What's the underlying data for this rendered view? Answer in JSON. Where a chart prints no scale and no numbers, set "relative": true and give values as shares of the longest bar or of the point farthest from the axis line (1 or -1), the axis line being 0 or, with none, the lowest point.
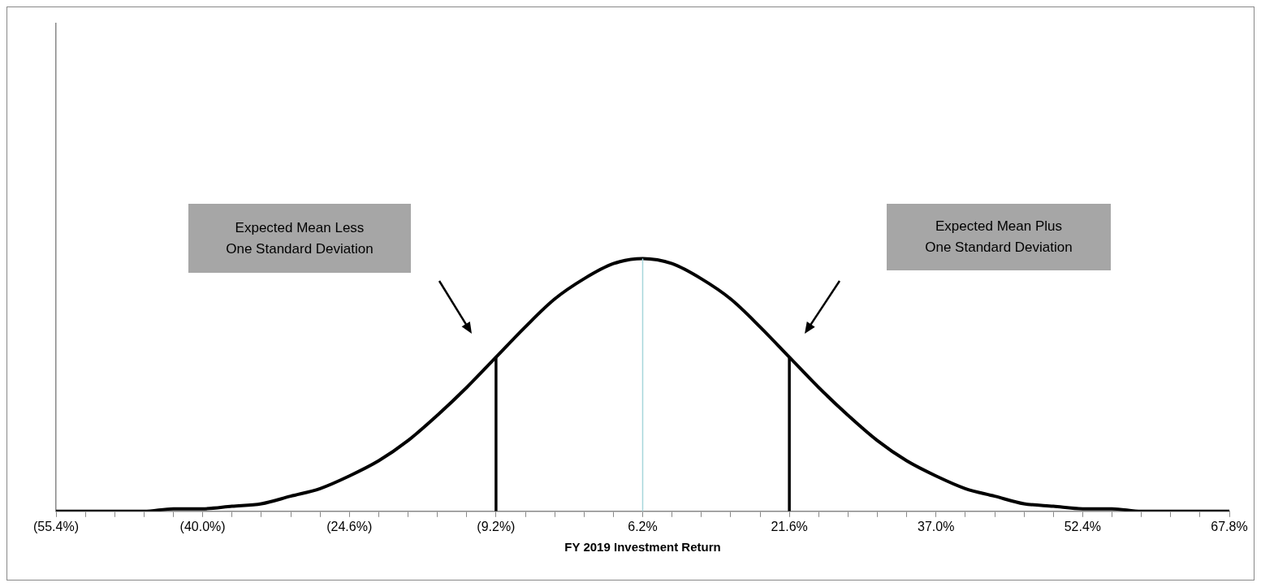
{
  "chart_data": {
    "type": "line",
    "relative": true,
    "xlabel": "FY 2019 Investment Return",
    "xlim": [
      -55.4,
      67.8
    ],
    "xticks": [
      {
        "value": -55.4,
        "label": "(55.4%)"
      },
      {
        "value": -52.32,
        "label": null
      },
      {
        "value": -49.24,
        "label": null
      },
      {
        "value": -46.16,
        "label": null
      },
      {
        "value": -43.08,
        "label": null
      },
      {
        "value": -40.0,
        "label": "(40.0%)"
      },
      {
        "value": -36.92,
        "label": null
      },
      {
        "value": -33.84,
        "label": null
      },
      {
        "value": -30.76,
        "label": null
      },
      {
        "value": -27.68,
        "label": null
      },
      {
        "value": -24.6,
        "label": "(24.6%)"
      },
      {
        "value": -21.52,
        "label": null
      },
      {
        "value": -18.44,
        "label": null
      },
      {
        "value": -15.36,
        "label": null
      },
      {
        "value": -12.28,
        "label": null
      },
      {
        "value": -9.2,
        "label": "(9.2%)"
      },
      {
        "value": -6.12,
        "label": null
      },
      {
        "value": -3.04,
        "label": null
      },
      {
        "value": 0.04,
        "label": null
      },
      {
        "value": 3.12,
        "label": null
      },
      {
        "value": 6.2,
        "label": "6.2%"
      },
      {
        "value": 9.28,
        "label": null
      },
      {
        "value": 12.36,
        "label": null
      },
      {
        "value": 15.44,
        "label": null
      },
      {
        "value": 18.52,
        "label": null
      },
      {
        "value": 21.6,
        "label": "21.6%"
      },
      {
        "value": 24.68,
        "label": null
      },
      {
        "value": 27.76,
        "label": null
      },
      {
        "value": 30.84,
        "label": null
      },
      {
        "value": 33.92,
        "label": null
      },
      {
        "value": 37.0,
        "label": "37.0%"
      },
      {
        "value": 40.08,
        "label": null
      },
      {
        "value": 43.16,
        "label": null
      },
      {
        "value": 46.24,
        "label": null
      },
      {
        "value": 49.32,
        "label": null
      },
      {
        "value": 52.4,
        "label": "52.4%"
      },
      {
        "value": 55.48,
        "label": null
      },
      {
        "value": 58.56,
        "label": null
      },
      {
        "value": 61.64,
        "label": null
      },
      {
        "value": 64.72,
        "label": null
      },
      {
        "value": 67.8,
        "label": "67.8%"
      }
    ],
    "grid": false,
    "legend": false,
    "marker": "none",
    "series": [
      {
        "color": "#000000",
        "x": [
          -55.4,
          -52.32,
          -49.24,
          -46.16,
          -43.08,
          -40.0,
          -36.92,
          -33.84,
          -30.76,
          -27.68,
          -24.6,
          -21.52,
          -18.44,
          -15.36,
          -12.28,
          -9.2,
          -6.12,
          -3.04,
          0.04,
          3.12,
          6.2,
          9.28,
          12.36,
          15.44,
          18.52,
          21.6,
          24.68,
          27.76,
          30.84,
          33.92,
          37.0,
          40.08,
          43.16,
          46.24,
          49.32,
          52.4,
          55.48,
          58.56,
          61.64,
          64.72,
          67.8
        ],
        "values": [
          0,
          0,
          0,
          0,
          0.01,
          0.01,
          0.02,
          0.03,
          0.06,
          0.09,
          0.14,
          0.2,
          0.28,
          0.38,
          0.49,
          0.61,
          0.73,
          0.84,
          0.92,
          0.98,
          1,
          0.98,
          0.92,
          0.84,
          0.73,
          0.61,
          0.49,
          0.38,
          0.28,
          0.2,
          0.14,
          0.09,
          0.06,
          0.03,
          0.02,
          0.01,
          0.01,
          0,
          0,
          0,
          0
        ]
      },
      {
        "color": "#000000",
        "x": [
          -9.2,
          -9.2
        ],
        "values": [
          0,
          0.61
        ]
      },
      {
        "color": "#000000",
        "x": [
          21.6,
          21.6
        ],
        "values": [
          0,
          0.61
        ]
      },
      {
        "color": "#a6d6db",
        "x": [
          6.2,
          6.2
        ],
        "values": [
          0,
          1
        ]
      }
    ],
    "annotations": [
      "Expected Mean Less\nOne Standard Deviation",
      "Expected Mean Plus\nOne Standard Deviation"
    ]
  }
}
